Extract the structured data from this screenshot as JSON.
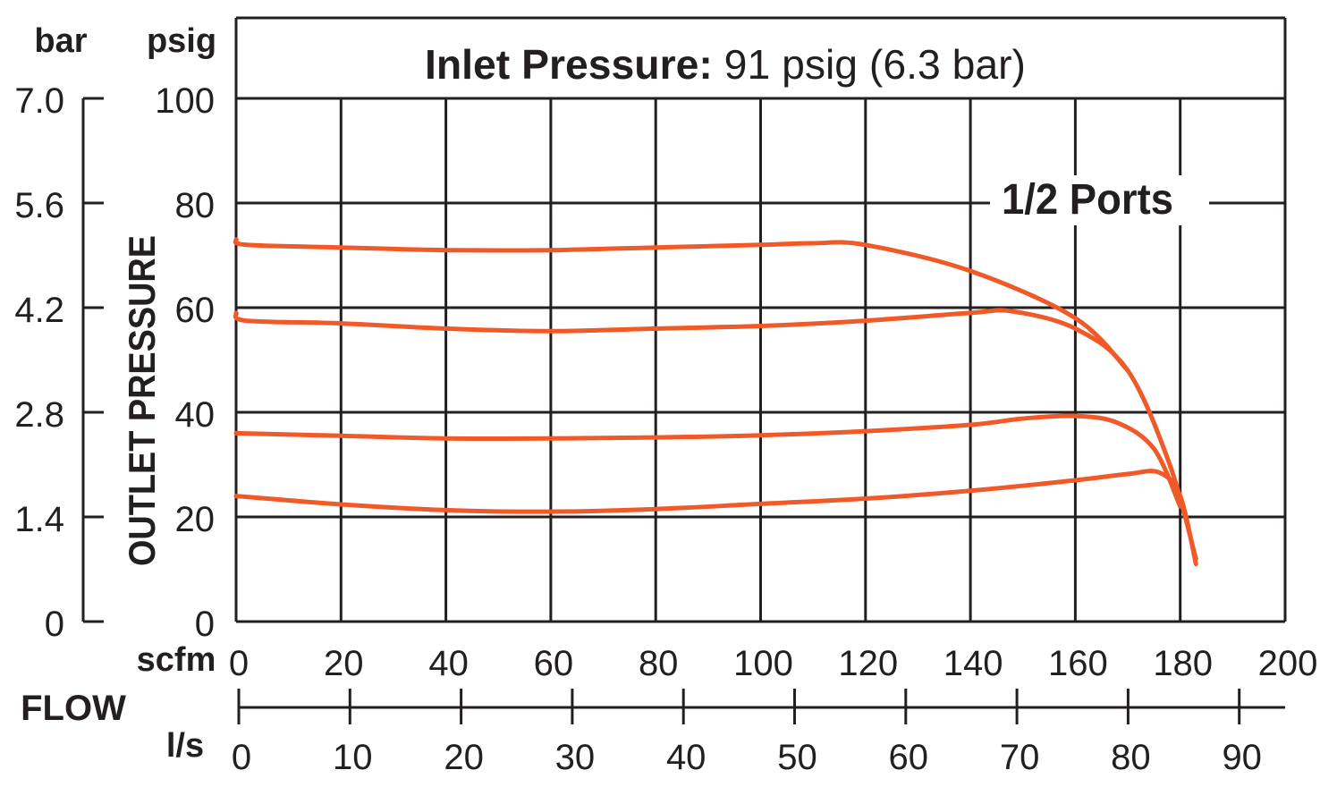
{
  "header": {
    "inlet_label": "Inlet Pressure:",
    "inlet_value": " 91 psig (6.3 bar)"
  },
  "axes": {
    "left_unit_bar": "bar",
    "left_unit_psig": "psig",
    "ylabel": "OUTLET PRESSURE",
    "xlabel": "FLOW",
    "x_unit_scfm": "scfm",
    "x_unit_ls": "l/s"
  },
  "annotation": "1/2 Ports",
  "colors": {
    "curve": "#f05a28",
    "grid": "#231f20",
    "text": "#231f20"
  },
  "chart_data": {
    "type": "line",
    "title": "Inlet Pressure: 91 psig (6.3 bar)",
    "annotation": "1/2 Ports",
    "xlabel": "FLOW",
    "ylabel": "OUTLET PRESSURE",
    "x_unit": "scfm",
    "y_unit": "psig",
    "xlim": [
      0,
      200
    ],
    "ylim": [
      0,
      100
    ],
    "x_ticks": [
      0,
      20,
      40,
      60,
      80,
      100,
      120,
      140,
      160,
      180,
      200
    ],
    "y_ticks": [
      0,
      20,
      40,
      60,
      80,
      100
    ],
    "secondary_x_unit": "l/s",
    "secondary_x_ticks": [
      0,
      10,
      20,
      30,
      40,
      50,
      60,
      70,
      80,
      90
    ],
    "secondary_x_labels": [
      "0",
      "10",
      "20",
      "30",
      "40",
      "50",
      "60",
      "70",
      "80",
      "90"
    ],
    "secondary_y_unit": "bar",
    "secondary_y_ticks": [
      0,
      1.4,
      2.8,
      4.2,
      5.6,
      7.0
    ],
    "secondary_y_labels": [
      "0",
      "1.4",
      "2.8",
      "4.2",
      "5.6",
      "7.0"
    ],
    "grid": true,
    "series": [
      {
        "x": [
          0,
          2,
          20,
          40,
          60,
          80,
          100,
          110,
          120,
          140,
          160,
          170
        ],
        "y": [
          73,
          72,
          71.5,
          71,
          71,
          71.5,
          72,
          72.3,
          72,
          67,
          58,
          48
        ]
      },
      {
        "x": [
          0,
          2,
          20,
          40,
          60,
          80,
          100,
          120,
          140,
          148,
          160,
          170,
          178,
          183
        ],
        "y": [
          59,
          57.5,
          57,
          56,
          55.5,
          56,
          56.5,
          57.5,
          59,
          59.3,
          56,
          48,
          30,
          12
        ]
      },
      {
        "x": [
          0,
          20,
          40,
          60,
          80,
          100,
          120,
          140,
          150,
          160,
          168,
          175,
          180
        ],
        "y": [
          36,
          35.5,
          35,
          35,
          35.2,
          35.6,
          36.4,
          37.6,
          38.8,
          39.3,
          38,
          33,
          22
        ]
      },
      {
        "x": [
          0,
          20,
          40,
          60,
          80,
          100,
          120,
          140,
          160,
          170,
          176,
          180,
          183
        ],
        "y": [
          24,
          22.4,
          21.3,
          21,
          21.5,
          22.5,
          23.5,
          25,
          27,
          28.2,
          28.5,
          24,
          11
        ]
      }
    ]
  }
}
